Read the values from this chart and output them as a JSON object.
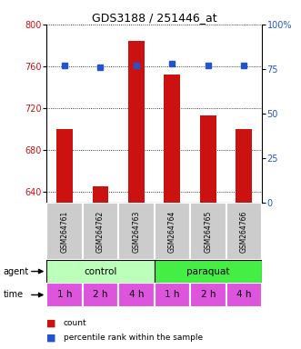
{
  "title": "GDS3188 / 251446_at",
  "categories": [
    "GSM264761",
    "GSM264762",
    "GSM264763",
    "GSM264764",
    "GSM264765",
    "GSM264766"
  ],
  "bar_values": [
    700,
    645,
    784,
    752,
    713,
    700
  ],
  "percentile_values": [
    77,
    76,
    77,
    78,
    77,
    77
  ],
  "ylim_left": [
    630,
    800
  ],
  "ylim_right": [
    0,
    100
  ],
  "yticks_left": [
    640,
    680,
    720,
    760,
    800
  ],
  "yticks_right": [
    0,
    25,
    50,
    75,
    100
  ],
  "ytick_labels_right": [
    "0",
    "25",
    "50",
    "75",
    "100%"
  ],
  "bar_color": "#cc1111",
  "percentile_color": "#2255cc",
  "agent_control_color": "#bbffbb",
  "agent_paraquat_color": "#44ee44",
  "time_color": "#dd55dd",
  "label_color_left": "#cc1111",
  "label_color_right": "#2255cc",
  "gsm_bg_color": "#cccccc",
  "gsm_border_color": "#888888"
}
